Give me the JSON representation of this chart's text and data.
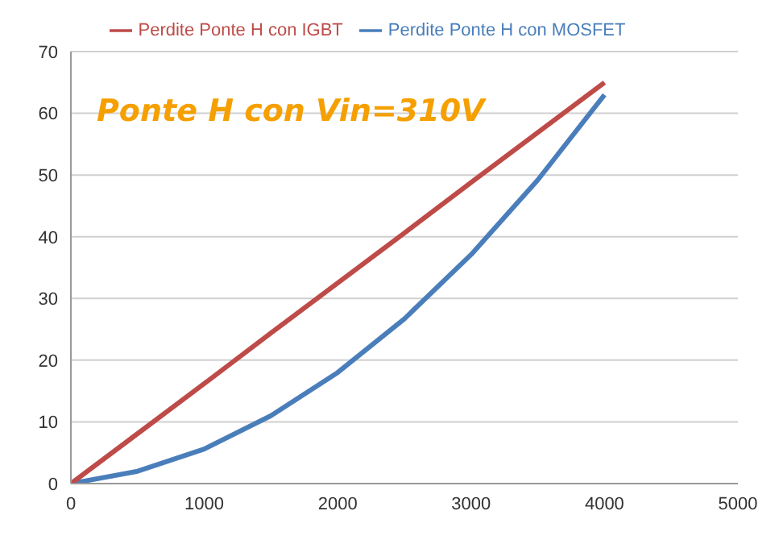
{
  "chart_data": {
    "type": "line",
    "title": "Ponte H con Vin=310V",
    "x": [
      0,
      500,
      1000,
      1500,
      2000,
      2500,
      3000,
      3500,
      4000
    ],
    "series": [
      {
        "name": "Perdite Ponte H con MOSFET",
        "color": "#4a7ebb",
        "values": [
          0,
          2,
          5.6,
          11,
          18,
          26.7,
          37.1,
          49.2,
          63
        ]
      },
      {
        "name": "Perdite Ponte H con IGBT",
        "color": "#be4b48",
        "values": [
          0,
          8.1,
          16.2,
          24.4,
          32.5,
          40.6,
          48.8,
          56.9,
          65
        ]
      }
    ],
    "xlim": [
      0,
      5000
    ],
    "xticks": [
      0,
      1000,
      2000,
      3000,
      4000,
      5000
    ],
    "ylim": [
      0,
      70
    ],
    "yticks": [
      0,
      10,
      20,
      30,
      40,
      50,
      60,
      70
    ],
    "grid": "y",
    "legend": "top",
    "marker": "none",
    "line_style": "solid"
  }
}
